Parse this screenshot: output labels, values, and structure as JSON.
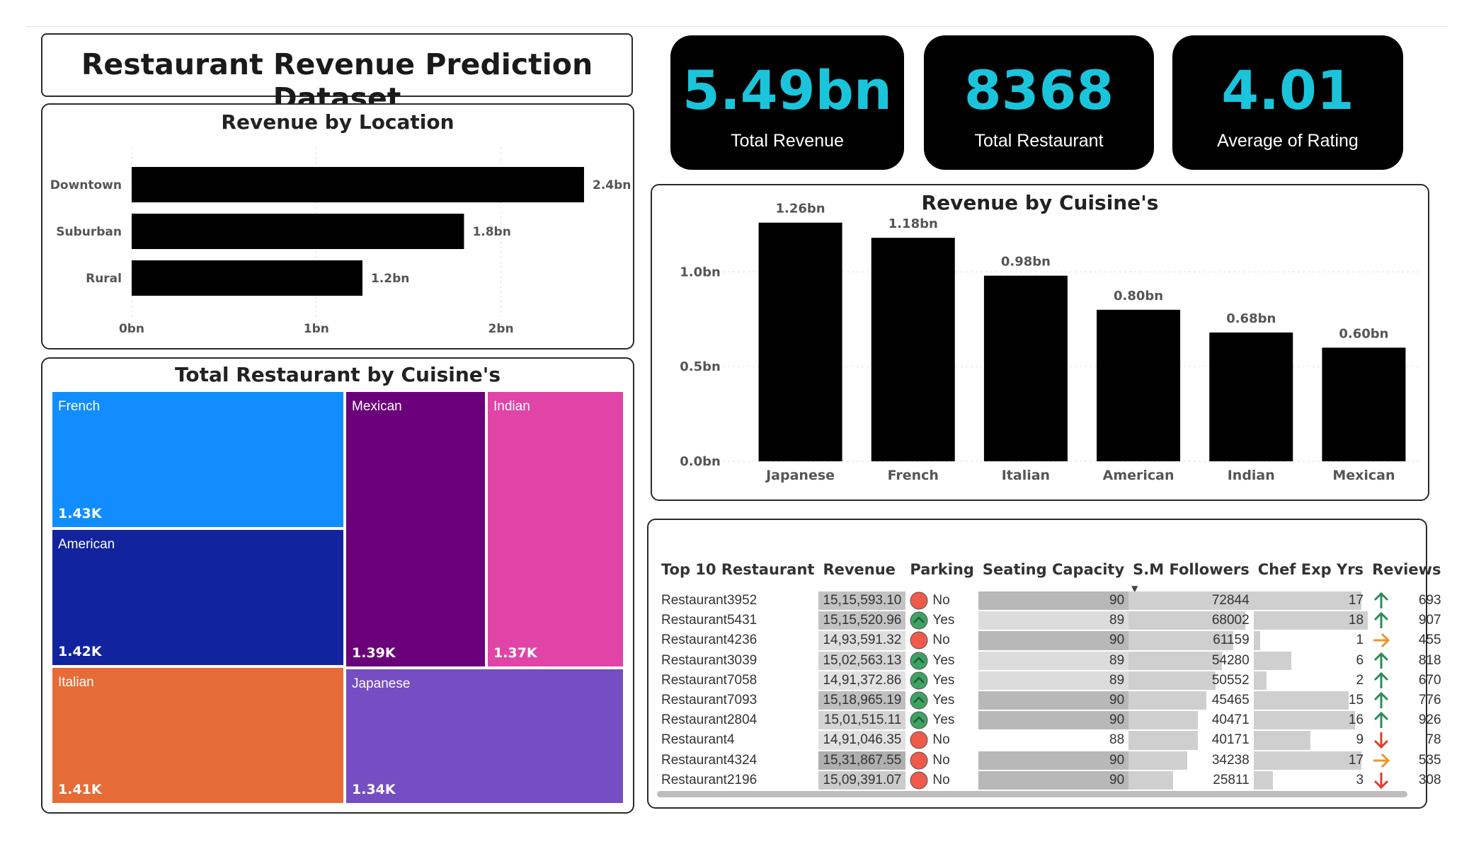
{
  "title": "Restaurant Revenue Prediction Dataset",
  "kpis": [
    {
      "value": "5.49bn",
      "label": "Total Revenue"
    },
    {
      "value": "8368",
      "label": "Total Restaurant"
    },
    {
      "value": "4.01",
      "label": "Average of Rating"
    }
  ],
  "colors": {
    "kpi_value": "#1ac5db",
    "bar": "#000000",
    "parking_yes": "#3fa262",
    "parking_no": "#ef5a4a",
    "arrow_up": "#2e8b57",
    "arrow_side": "#e8952b",
    "arrow_down": "#e03c2c"
  },
  "chart_data": [
    {
      "type": "bar",
      "orientation": "horizontal",
      "title": "Revenue by Location",
      "categories": [
        "Downtown",
        "Suburban",
        "Rural"
      ],
      "values": [
        2.45,
        1.8,
        1.25
      ],
      "data_labels": [
        "2.4bn",
        "1.8bn",
        "1.2bn"
      ],
      "xlim": [
        0,
        2.5
      ],
      "xticks": [
        {
          "v": 0,
          "label": "0bn"
        },
        {
          "v": 1,
          "label": "1bn"
        },
        {
          "v": 2,
          "label": "2bn"
        }
      ],
      "grid": true
    },
    {
      "type": "bar",
      "title": "Revenue by Cuisine's",
      "categories": [
        "Japanese",
        "French",
        "Italian",
        "American",
        "Indian",
        "Mexican"
      ],
      "values": [
        1.26,
        1.18,
        0.98,
        0.8,
        0.68,
        0.6
      ],
      "data_labels": [
        "1.26bn",
        "1.18bn",
        "0.98bn",
        "0.80bn",
        "0.68bn",
        "0.60bn"
      ],
      "ylim": [
        0,
        1.3
      ],
      "yticks": [
        {
          "v": 0,
          "label": "0.0bn"
        },
        {
          "v": 0.5,
          "label": "0.5bn"
        },
        {
          "v": 1.0,
          "label": "1.0bn"
        }
      ],
      "grid": true
    },
    {
      "type": "treemap",
      "title": "Total Restaurant by Cuisine's",
      "items": [
        {
          "name": "French",
          "value": 1430,
          "label": "1.43K",
          "color": "#118dff"
        },
        {
          "name": "American",
          "value": 1420,
          "label": "1.42K",
          "color": "#12239e"
        },
        {
          "name": "Italian",
          "value": 1410,
          "label": "1.41K",
          "color": "#e66c37"
        },
        {
          "name": "Mexican",
          "value": 1390,
          "label": "1.39K",
          "color": "#6b007b"
        },
        {
          "name": "Indian",
          "value": 1370,
          "label": "1.37K",
          "color": "#e044a7"
        },
        {
          "name": "Japanese",
          "value": 1340,
          "label": "1.34K",
          "color": "#744ec2"
        }
      ]
    },
    {
      "type": "table",
      "columns": [
        "Top 10 Restaurant",
        "Revenue",
        "Parking",
        "Seating Capacity",
        "S.M Followers",
        "Chef Exp Yrs",
        "Reviews"
      ],
      "sort_column": "S.M Followers",
      "rows": [
        {
          "name": "Restaurant3952",
          "revenue": "15,15,593.10",
          "parking": "No",
          "seating": 90,
          "followers": 72844,
          "chef": 17,
          "trend": "up",
          "reviews": 693
        },
        {
          "name": "Restaurant5431",
          "revenue": "15,15,520.96",
          "parking": "Yes",
          "seating": 89,
          "followers": 68002,
          "chef": 18,
          "trend": "up",
          "reviews": 907
        },
        {
          "name": "Restaurant4236",
          "revenue": "14,93,591.32",
          "parking": "No",
          "seating": 90,
          "followers": 61159,
          "chef": 1,
          "trend": "side",
          "reviews": 455
        },
        {
          "name": "Restaurant3039",
          "revenue": "15,02,563.13",
          "parking": "Yes",
          "seating": 89,
          "followers": 54280,
          "chef": 6,
          "trend": "up",
          "reviews": 818
        },
        {
          "name": "Restaurant7058",
          "revenue": "14,91,372.86",
          "parking": "Yes",
          "seating": 89,
          "followers": 50552,
          "chef": 2,
          "trend": "up",
          "reviews": 670
        },
        {
          "name": "Restaurant7093",
          "revenue": "15,18,965.19",
          "parking": "Yes",
          "seating": 90,
          "followers": 45465,
          "chef": 15,
          "trend": "up",
          "reviews": 776
        },
        {
          "name": "Restaurant2804",
          "revenue": "15,01,515.11",
          "parking": "Yes",
          "seating": 90,
          "followers": 40471,
          "chef": 16,
          "trend": "up",
          "reviews": 926
        },
        {
          "name": "Restaurant4",
          "revenue": "14,91,046.35",
          "parking": "No",
          "seating": 88,
          "followers": 40171,
          "chef": 9,
          "trend": "down",
          "reviews": 78
        },
        {
          "name": "Restaurant4324",
          "revenue": "15,31,867.55",
          "parking": "No",
          "seating": 90,
          "followers": 34238,
          "chef": 17,
          "trend": "side",
          "reviews": 535
        },
        {
          "name": "Restaurant2196",
          "revenue": "15,09,391.07",
          "parking": "No",
          "seating": 90,
          "followers": 25811,
          "chef": 3,
          "trend": "down",
          "reviews": 308
        }
      ]
    }
  ]
}
